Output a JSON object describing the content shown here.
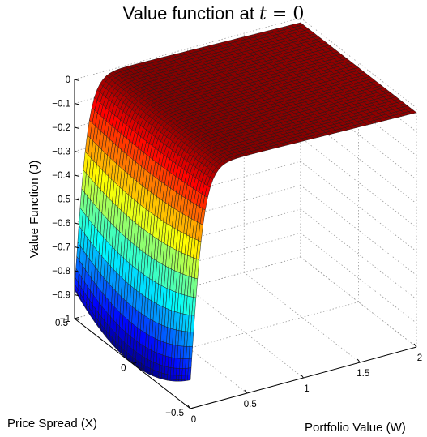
{
  "chart_data": {
    "type": "surface",
    "title": {
      "prefix": "Value function at ",
      "variable": "t",
      "equals": " = ",
      "value": "0"
    },
    "xlabel": "Price Spread (X)",
    "ylabel": "Portfolio Value (W)",
    "zlabel": "Value Function (J)",
    "x_range": [
      -0.5,
      0.5
    ],
    "y_range": [
      0,
      2
    ],
    "z_range": [
      -1,
      0
    ],
    "x_ticks": [
      "0.5",
      "0",
      "−0.5"
    ],
    "y_ticks": [
      "0",
      "0.5",
      "1",
      "1.5",
      "2"
    ],
    "z_ticks": [
      "0",
      "−0.1",
      "−0.2",
      "−0.3",
      "−0.4",
      "−0.5",
      "−0.6",
      "−0.7",
      "−0.8",
      "−0.9",
      "−1"
    ],
    "grid": true,
    "colormap": "jet",
    "surface_description": "J is approximately -1 at W = 0 and rises steeply to near 0 by W around 0.3; at low W the value is lowest near X = 0 and higher at X = +/-0.5"
  }
}
